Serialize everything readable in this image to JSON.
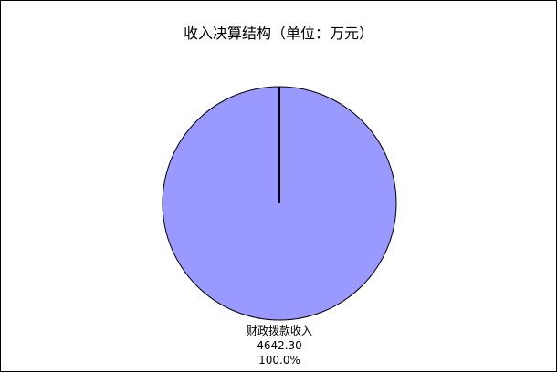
{
  "chart_data": {
    "type": "pie",
    "title": "收入决算结构（单位：万元）",
    "slices": [
      {
        "label": "财政拨款收入",
        "value": 4642.3,
        "value_text": "4642.30",
        "percent_text": "100.0%",
        "color": "#9999FF"
      }
    ],
    "legend": "none"
  }
}
